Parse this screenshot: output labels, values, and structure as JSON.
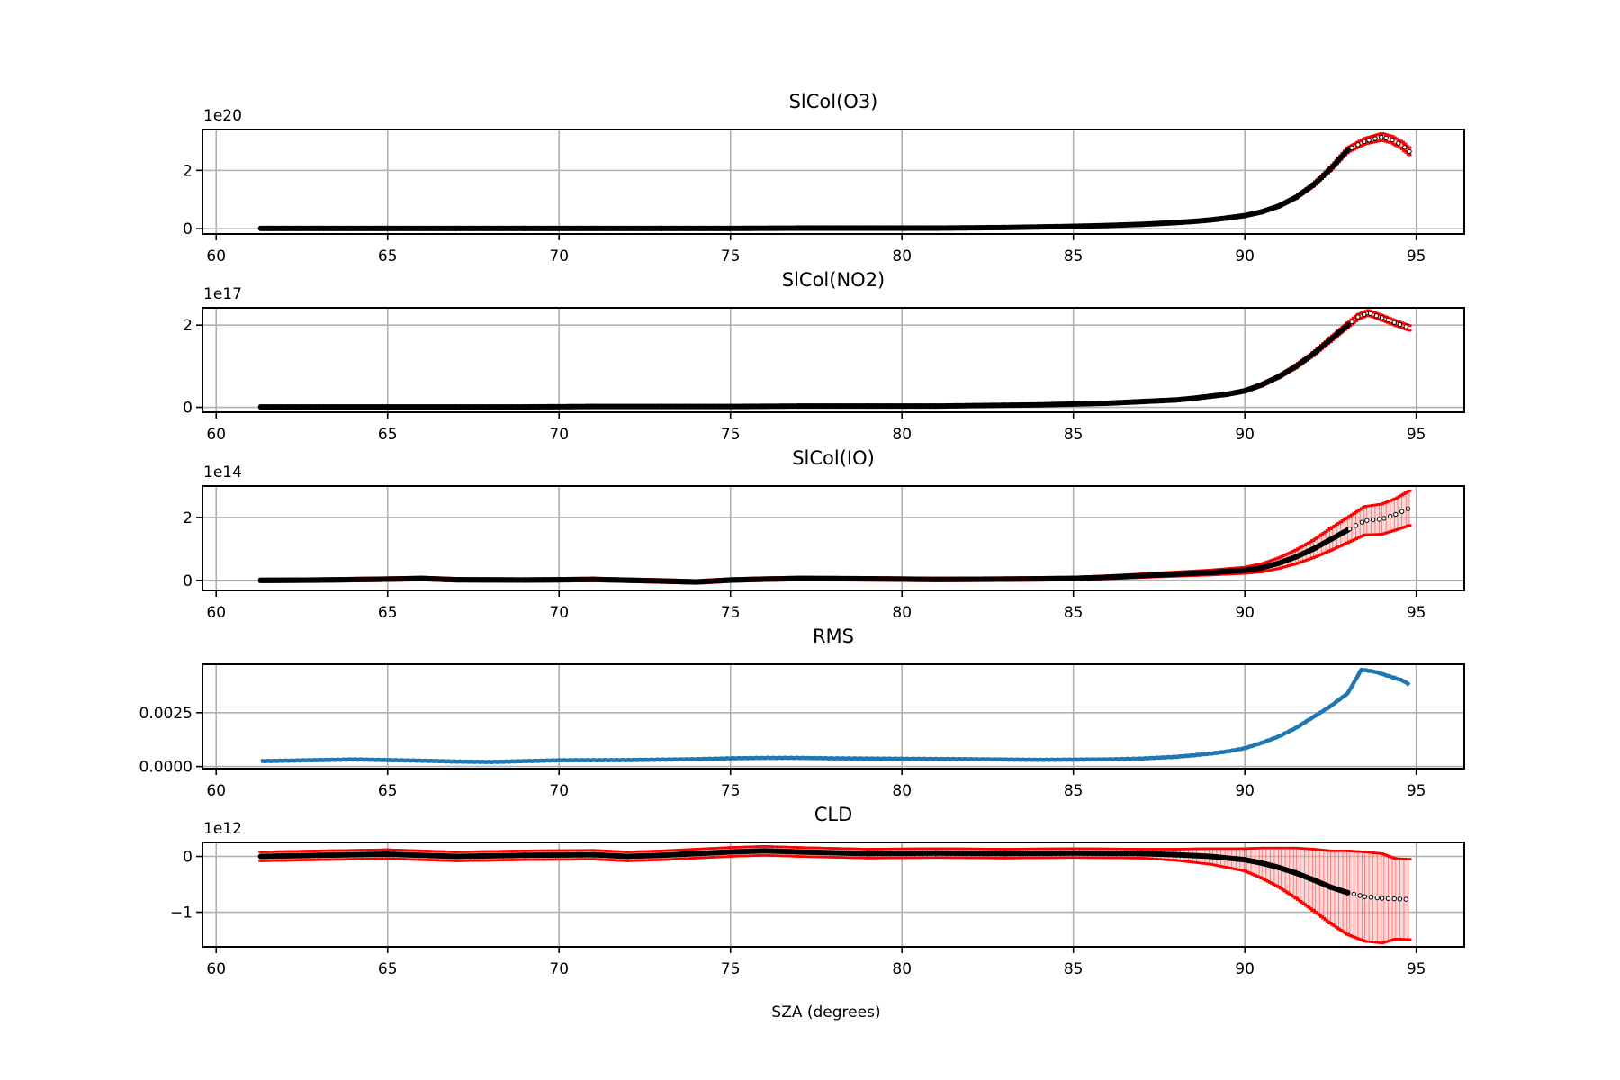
{
  "figure": {
    "xlabel": "SZA (degrees)"
  },
  "colors": {
    "errorbar": "#ff0000",
    "errorfill": "#f6b8b8",
    "marker": "#000000",
    "line": "#1f77b4",
    "grid": "#b0b0b0"
  },
  "chart_data": [
    {
      "type": "scatter",
      "title": "SlCol(O3)",
      "exponent_label": "1e20",
      "xlim": [
        59.6,
        96.4
      ],
      "ylim": [
        -0.18,
        3.4
      ],
      "xticks": [
        60,
        65,
        70,
        75,
        80,
        85,
        90,
        95
      ],
      "xtick_labels": [
        "60",
        "65",
        "70",
        "75",
        "80",
        "85",
        "90",
        "95"
      ],
      "yticks": [
        0,
        2
      ],
      "ytick_labels": [
        "0",
        "2"
      ],
      "grid": true,
      "series": [
        {
          "x": [
            61.3,
            63,
            65,
            67,
            69,
            71,
            73,
            75,
            77,
            79,
            81,
            83,
            84,
            85,
            86,
            87,
            88,
            88.5,
            89,
            89.5,
            90,
            90.5,
            91,
            91.5,
            92,
            92.5,
            93,
            93.5,
            94,
            94.3,
            94.6,
            94.8
          ],
          "y": [
            0.01,
            0.01,
            0.01,
            0.01,
            0.01,
            0.01,
            0.01,
            0.01,
            0.02,
            0.02,
            0.02,
            0.04,
            0.06,
            0.08,
            0.11,
            0.15,
            0.21,
            0.25,
            0.3,
            0.37,
            0.45,
            0.58,
            0.78,
            1.08,
            1.5,
            2.05,
            2.7,
            3.0,
            3.15,
            3.05,
            2.85,
            2.65
          ],
          "err": [
            0.02,
            0.02,
            0.02,
            0.02,
            0.02,
            0.02,
            0.02,
            0.02,
            0.02,
            0.02,
            0.02,
            0.02,
            0.02,
            0.02,
            0.02,
            0.02,
            0.02,
            0.02,
            0.02,
            0.02,
            0.03,
            0.03,
            0.03,
            0.04,
            0.05,
            0.06,
            0.08,
            0.1,
            0.12,
            0.12,
            0.12,
            0.12
          ]
        }
      ]
    },
    {
      "type": "scatter",
      "title": "SlCol(NO2)",
      "exponent_label": "1e17",
      "xlim": [
        59.6,
        96.4
      ],
      "ylim": [
        -0.12,
        2.42
      ],
      "xticks": [
        60,
        65,
        70,
        75,
        80,
        85,
        90,
        95
      ],
      "xtick_labels": [
        "60",
        "65",
        "70",
        "75",
        "80",
        "85",
        "90",
        "95"
      ],
      "yticks": [
        0,
        2
      ],
      "ytick_labels": [
        "0",
        "2"
      ],
      "grid": true,
      "series": [
        {
          "x": [
            61.3,
            63,
            65,
            67,
            69,
            71,
            73,
            75,
            77,
            79,
            81,
            83,
            84,
            85,
            86,
            87,
            88,
            88.5,
            89,
            89.5,
            90,
            90.5,
            91,
            91.5,
            92,
            92.5,
            93,
            93.3,
            93.6,
            94,
            94.4,
            94.8
          ],
          "y": [
            0.01,
            0.01,
            0.01,
            0.01,
            0.01,
            0.02,
            0.02,
            0.02,
            0.03,
            0.03,
            0.03,
            0.05,
            0.06,
            0.08,
            0.1,
            0.14,
            0.18,
            0.22,
            0.27,
            0.32,
            0.4,
            0.55,
            0.75,
            1.0,
            1.3,
            1.65,
            2.0,
            2.2,
            2.3,
            2.18,
            2.05,
            1.93
          ],
          "err": [
            0.02,
            0.02,
            0.02,
            0.02,
            0.02,
            0.02,
            0.02,
            0.02,
            0.02,
            0.02,
            0.02,
            0.02,
            0.02,
            0.02,
            0.02,
            0.02,
            0.02,
            0.02,
            0.02,
            0.02,
            0.03,
            0.03,
            0.03,
            0.04,
            0.04,
            0.05,
            0.06,
            0.06,
            0.06,
            0.06,
            0.06,
            0.06
          ]
        }
      ]
    },
    {
      "type": "scatter",
      "title": "SlCol(IO)",
      "exponent_label": "1e14",
      "xlim": [
        59.6,
        96.4
      ],
      "ylim": [
        -0.32,
        3.0
      ],
      "xticks": [
        60,
        65,
        70,
        75,
        80,
        85,
        90,
        95
      ],
      "xtick_labels": [
        "60",
        "65",
        "70",
        "75",
        "80",
        "85",
        "90",
        "95"
      ],
      "yticks": [
        0,
        2
      ],
      "ytick_labels": [
        "0",
        "2"
      ],
      "grid": true,
      "series": [
        {
          "x": [
            61.3,
            63,
            65,
            66,
            67,
            69,
            71,
            73,
            74,
            75,
            76,
            77,
            79,
            81,
            83,
            85,
            86,
            87,
            88,
            89,
            90,
            90.5,
            91,
            91.5,
            92,
            92.5,
            93,
            93.5,
            94,
            94.4,
            94.8
          ],
          "y": [
            0.0,
            0.01,
            0.04,
            0.06,
            0.02,
            0.01,
            0.03,
            -0.02,
            -0.05,
            0.01,
            0.04,
            0.06,
            0.05,
            0.03,
            0.04,
            0.06,
            0.1,
            0.15,
            0.2,
            0.25,
            0.32,
            0.4,
            0.55,
            0.75,
            1.0,
            1.3,
            1.6,
            1.9,
            1.95,
            2.1,
            2.3
          ],
          "err": [
            0.05,
            0.05,
            0.05,
            0.05,
            0.05,
            0.05,
            0.05,
            0.05,
            0.05,
            0.05,
            0.05,
            0.05,
            0.05,
            0.05,
            0.05,
            0.05,
            0.05,
            0.06,
            0.07,
            0.08,
            0.1,
            0.13,
            0.17,
            0.22,
            0.28,
            0.35,
            0.4,
            0.45,
            0.48,
            0.5,
            0.55
          ]
        }
      ]
    },
    {
      "type": "line",
      "title": "RMS",
      "exponent_label": "",
      "xlim": [
        59.6,
        96.4
      ],
      "ylim": [
        -0.0001,
        0.00475
      ],
      "xticks": [
        60,
        65,
        70,
        75,
        80,
        85,
        90,
        95
      ],
      "xtick_labels": [
        "60",
        "65",
        "70",
        "75",
        "80",
        "85",
        "90",
        "95"
      ],
      "yticks": [
        0,
        0.0025
      ],
      "ytick_labels": [
        "0.0000",
        "0.0025"
      ],
      "grid": true,
      "series": [
        {
          "x": [
            61.3,
            63,
            64,
            65,
            66,
            67,
            68,
            69,
            70,
            72,
            74,
            75,
            76,
            77,
            78,
            80,
            82,
            84,
            86,
            87,
            88,
            88.5,
            89,
            89.5,
            90,
            90.5,
            91,
            91.5,
            92,
            92.5,
            93,
            93.4,
            93.8,
            94.2,
            94.6,
            94.8
          ],
          "y": [
            0.00025,
            0.0003,
            0.00033,
            0.0003,
            0.00027,
            0.00023,
            0.00021,
            0.00025,
            0.00029,
            0.0003,
            0.00034,
            0.00038,
            0.0004,
            0.0004,
            0.00038,
            0.00036,
            0.00034,
            0.00031,
            0.00033,
            0.00037,
            0.00045,
            0.00052,
            0.0006,
            0.0007,
            0.00085,
            0.0011,
            0.0014,
            0.0018,
            0.0023,
            0.0028,
            0.0034,
            0.0045,
            0.0044,
            0.0042,
            0.004,
            0.0038
          ]
        }
      ]
    },
    {
      "type": "scatter",
      "title": "CLD",
      "exponent_label": "1e12",
      "xlim": [
        59.6,
        96.4
      ],
      "ylim": [
        -1.62,
        0.25
      ],
      "xticks": [
        60,
        65,
        70,
        75,
        80,
        85,
        90,
        95
      ],
      "xtick_labels": [
        "60",
        "65",
        "70",
        "75",
        "80",
        "85",
        "90",
        "95"
      ],
      "yticks": [
        0,
        -1
      ],
      "ytick_labels": [
        "0",
        "−1"
      ],
      "grid": true,
      "series": [
        {
          "x": [
            61.3,
            63,
            65,
            67,
            69,
            71,
            72,
            73,
            75,
            76,
            77,
            79,
            81,
            83,
            85,
            87,
            88,
            89,
            89.5,
            90,
            90.5,
            91,
            91.5,
            92,
            92.5,
            93,
            93.5,
            94,
            94.4,
            94.8
          ],
          "y": [
            0.0,
            0.02,
            0.04,
            0.0,
            0.02,
            0.03,
            0.0,
            0.02,
            0.08,
            0.1,
            0.08,
            0.05,
            0.06,
            0.05,
            0.06,
            0.05,
            0.03,
            0.0,
            -0.03,
            -0.06,
            -0.12,
            -0.2,
            -0.3,
            -0.42,
            -0.55,
            -0.65,
            -0.72,
            -0.75,
            -0.76,
            -0.77
          ],
          "err": [
            0.08,
            0.08,
            0.08,
            0.08,
            0.08,
            0.08,
            0.08,
            0.08,
            0.08,
            0.08,
            0.08,
            0.08,
            0.08,
            0.08,
            0.08,
            0.08,
            0.1,
            0.14,
            0.17,
            0.2,
            0.27,
            0.35,
            0.45,
            0.55,
            0.65,
            0.75,
            0.8,
            0.8,
            0.72,
            0.72
          ]
        }
      ]
    }
  ]
}
